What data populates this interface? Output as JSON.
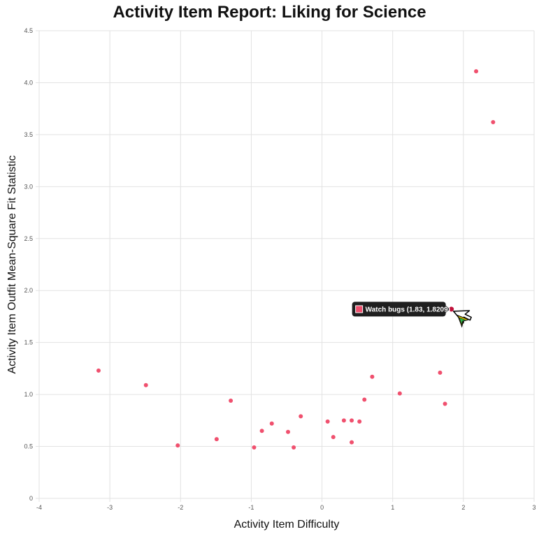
{
  "chart_data": {
    "type": "scatter",
    "title": "Activity Item Report: Liking for Science",
    "xlabel": "Activity Item Difficulty",
    "ylabel": "Activity Item Outfit Mean-Square Fit Statistic",
    "xlim": [
      -4,
      3
    ],
    "ylim": [
      0,
      4.5
    ],
    "x_ticks": [
      "-4",
      "-3",
      "-2",
      "-1",
      "0",
      "1",
      "2",
      "3"
    ],
    "y_ticks": [
      "0",
      "0.5",
      "1.0",
      "1.5",
      "2.0",
      "2.5",
      "3.0",
      "3.5",
      "4.0",
      "4.5"
    ],
    "grid": true,
    "point_color": "#f0506e",
    "points": [
      {
        "x": -3.16,
        "y": 1.23
      },
      {
        "x": -2.49,
        "y": 1.09
      },
      {
        "x": -2.04,
        "y": 0.51
      },
      {
        "x": -1.49,
        "y": 0.57
      },
      {
        "x": -1.29,
        "y": 0.94
      },
      {
        "x": -0.96,
        "y": 0.49
      },
      {
        "x": -0.85,
        "y": 0.65
      },
      {
        "x": -0.71,
        "y": 0.72
      },
      {
        "x": -0.48,
        "y": 0.64
      },
      {
        "x": -0.4,
        "y": 0.49
      },
      {
        "x": -0.3,
        "y": 0.79
      },
      {
        "x": 0.08,
        "y": 0.74
      },
      {
        "x": 0.16,
        "y": 0.59
      },
      {
        "x": 0.31,
        "y": 0.75
      },
      {
        "x": 0.42,
        "y": 0.75
      },
      {
        "x": 0.42,
        "y": 0.54
      },
      {
        "x": 0.53,
        "y": 0.74
      },
      {
        "x": 0.6,
        "y": 0.95
      },
      {
        "x": 0.71,
        "y": 1.17
      },
      {
        "x": 1.1,
        "y": 1.01
      },
      {
        "x": 1.67,
        "y": 1.21
      },
      {
        "x": 1.74,
        "y": 0.91
      },
      {
        "x": 1.83,
        "y": 1.8209,
        "label": "Watch bugs"
      },
      {
        "x": 2.18,
        "y": 4.11
      },
      {
        "x": 2.42,
        "y": 3.62
      }
    ],
    "tooltip": {
      "text": "Watch bugs (1.83, 1.8209)",
      "point_index": 22,
      "swatch_color": "#f0506e",
      "background": "#1f1f1f"
    }
  },
  "cursor": {
    "icon": "mouse-pointer-icon"
  }
}
